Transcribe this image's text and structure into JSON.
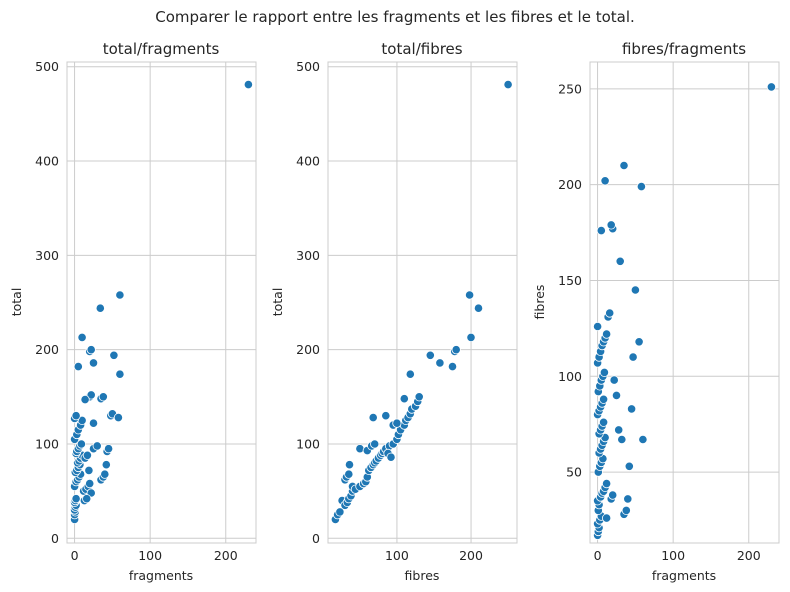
{
  "figure": {
    "suptitle": "Comparer le rapport entre les fragments et les fibres et le total."
  },
  "chart_data": [
    {
      "type": "scatter",
      "title": "total/fragments",
      "xlabel": "fragments",
      "ylabel": "total",
      "xlim": [
        -10,
        240
      ],
      "ylim": [
        -5,
        505
      ],
      "xticks": [
        0,
        100,
        200
      ],
      "yticks": [
        0,
        100,
        200,
        300,
        400,
        500
      ],
      "grid": true,
      "color": "#1f77b4",
      "points": [
        [
          0,
          20
        ],
        [
          0,
          25
        ],
        [
          1,
          28
        ],
        [
          0,
          30
        ],
        [
          1,
          33
        ],
        [
          2,
          35
        ],
        [
          0,
          38
        ],
        [
          1,
          40
        ],
        [
          2,
          42
        ],
        [
          0,
          55
        ],
        [
          2,
          60
        ],
        [
          4,
          62
        ],
        [
          6,
          65
        ],
        [
          8,
          68
        ],
        [
          1,
          70
        ],
        [
          3,
          72
        ],
        [
          5,
          75
        ],
        [
          7,
          78
        ],
        [
          4,
          80
        ],
        [
          6,
          82
        ],
        [
          8,
          85
        ],
        [
          10,
          88
        ],
        [
          2,
          90
        ],
        [
          3,
          92
        ],
        [
          5,
          95
        ],
        [
          7,
          98
        ],
        [
          9,
          100
        ],
        [
          0,
          105
        ],
        [
          3,
          110
        ],
        [
          5,
          115
        ],
        [
          8,
          120
        ],
        [
          10,
          125
        ],
        [
          0,
          127
        ],
        [
          2,
          130
        ],
        [
          12,
          50
        ],
        [
          15,
          52
        ],
        [
          18,
          55
        ],
        [
          20,
          58
        ],
        [
          22,
          48
        ],
        [
          13,
          40
        ],
        [
          16,
          42
        ],
        [
          14,
          85
        ],
        [
          17,
          88
        ],
        [
          19,
          72
        ],
        [
          25,
          95
        ],
        [
          30,
          98
        ],
        [
          35,
          62
        ],
        [
          38,
          65
        ],
        [
          40,
          68
        ],
        [
          42,
          78
        ],
        [
          43,
          92
        ],
        [
          45,
          95
        ],
        [
          48,
          130
        ],
        [
          50,
          132
        ],
        [
          58,
          128
        ],
        [
          60,
          174
        ],
        [
          52,
          194
        ],
        [
          35,
          148
        ],
        [
          38,
          150
        ],
        [
          20,
          150
        ],
        [
          22,
          152
        ],
        [
          25,
          122
        ],
        [
          14,
          147
        ],
        [
          10,
          213
        ],
        [
          5,
          182
        ],
        [
          20,
          198
        ],
        [
          22,
          200
        ],
        [
          25,
          186
        ],
        [
          34,
          244
        ],
        [
          60,
          258
        ],
        [
          230,
          481
        ]
      ]
    },
    {
      "type": "scatter",
      "title": "total/fibres",
      "xlabel": "fibres",
      "ylabel": "total",
      "xlim": [
        7,
        262
      ],
      "ylim": [
        -5,
        505
      ],
      "xticks": [
        100,
        200
      ],
      "yticks": [
        0,
        100,
        200,
        300,
        400,
        500
      ],
      "grid": true,
      "color": "#1f77b4",
      "points": [
        [
          17,
          20
        ],
        [
          20,
          25
        ],
        [
          23,
          28
        ],
        [
          26,
          40
        ],
        [
          30,
          35
        ],
        [
          33,
          38
        ],
        [
          35,
          42
        ],
        [
          38,
          45
        ],
        [
          40,
          50
        ],
        [
          30,
          62
        ],
        [
          32,
          65
        ],
        [
          35,
          68
        ],
        [
          40,
          55
        ],
        [
          44,
          52
        ],
        [
          50,
          55
        ],
        [
          55,
          58
        ],
        [
          58,
          60
        ],
        [
          60,
          65
        ],
        [
          62,
          72
        ],
        [
          65,
          75
        ],
        [
          68,
          78
        ],
        [
          70,
          80
        ],
        [
          72,
          82
        ],
        [
          75,
          85
        ],
        [
          78,
          88
        ],
        [
          80,
          90
        ],
        [
          82,
          92
        ],
        [
          85,
          95
        ],
        [
          90,
          98
        ],
        [
          95,
          100
        ],
        [
          100,
          105
        ],
        [
          102,
          110
        ],
        [
          105,
          115
        ],
        [
          110,
          120
        ],
        [
          112,
          125
        ],
        [
          115,
          128
        ],
        [
          118,
          132
        ],
        [
          120,
          137
        ],
        [
          125,
          140
        ],
        [
          128,
          145
        ],
        [
          130,
          150
        ],
        [
          36,
          78
        ],
        [
          50,
          95
        ],
        [
          60,
          93
        ],
        [
          66,
          98
        ],
        [
          70,
          100
        ],
        [
          88,
          90
        ],
        [
          92,
          86
        ],
        [
          68,
          128
        ],
        [
          85,
          130
        ],
        [
          95,
          120
        ],
        [
          100,
          122
        ],
        [
          110,
          148
        ],
        [
          118,
          174
        ],
        [
          145,
          194
        ],
        [
          158,
          186
        ],
        [
          175,
          182
        ],
        [
          178,
          198
        ],
        [
          180,
          200
        ],
        [
          200,
          213
        ],
        [
          198,
          258
        ],
        [
          210,
          244
        ],
        [
          250,
          481
        ]
      ]
    },
    {
      "type": "scatter",
      "title": "fibres/fragments",
      "xlabel": "fragments",
      "ylabel": "fibres",
      "xlim": [
        -10,
        240
      ],
      "ylim": [
        13,
        264
      ],
      "xticks": [
        0,
        100,
        200
      ],
      "yticks": [
        50,
        100,
        150,
        200,
        250
      ],
      "grid": true,
      "color": "#1f77b4",
      "points": [
        [
          0,
          17
        ],
        [
          1,
          19
        ],
        [
          2,
          21
        ],
        [
          0,
          23
        ],
        [
          3,
          25
        ],
        [
          5,
          27
        ],
        [
          1,
          30
        ],
        [
          2,
          33
        ],
        [
          0,
          35
        ],
        [
          4,
          37
        ],
        [
          6,
          39
        ],
        [
          8,
          40
        ],
        [
          10,
          42
        ],
        [
          12,
          44
        ],
        [
          1,
          50
        ],
        [
          3,
          53
        ],
        [
          5,
          55
        ],
        [
          7,
          57
        ],
        [
          2,
          60
        ],
        [
          4,
          62
        ],
        [
          6,
          64
        ],
        [
          8,
          66
        ],
        [
          10,
          68
        ],
        [
          2,
          70
        ],
        [
          4,
          72
        ],
        [
          6,
          74
        ],
        [
          8,
          76
        ],
        [
          0,
          80
        ],
        [
          2,
          82
        ],
        [
          4,
          84
        ],
        [
          6,
          86
        ],
        [
          8,
          88
        ],
        [
          1,
          92
        ],
        [
          3,
          95
        ],
        [
          5,
          98
        ],
        [
          7,
          100
        ],
        [
          9,
          102
        ],
        [
          0,
          107
        ],
        [
          2,
          110
        ],
        [
          4,
          113
        ],
        [
          6,
          116
        ],
        [
          8,
          118
        ],
        [
          10,
          120
        ],
        [
          12,
          122
        ],
        [
          0,
          126
        ],
        [
          14,
          131
        ],
        [
          16,
          133
        ],
        [
          18,
          36
        ],
        [
          20,
          38
        ],
        [
          12,
          26
        ],
        [
          22,
          98
        ],
        [
          25,
          90
        ],
        [
          28,
          72
        ],
        [
          32,
          67
        ],
        [
          35,
          28
        ],
        [
          38,
          30
        ],
        [
          40,
          36
        ],
        [
          42,
          53
        ],
        [
          45,
          83
        ],
        [
          47,
          110
        ],
        [
          50,
          145
        ],
        [
          55,
          118
        ],
        [
          60,
          67
        ],
        [
          58,
          199
        ],
        [
          30,
          160
        ],
        [
          35,
          210
        ],
        [
          10,
          202
        ],
        [
          5,
          176
        ],
        [
          20,
          177
        ],
        [
          18,
          179
        ],
        [
          230,
          251
        ]
      ]
    }
  ]
}
